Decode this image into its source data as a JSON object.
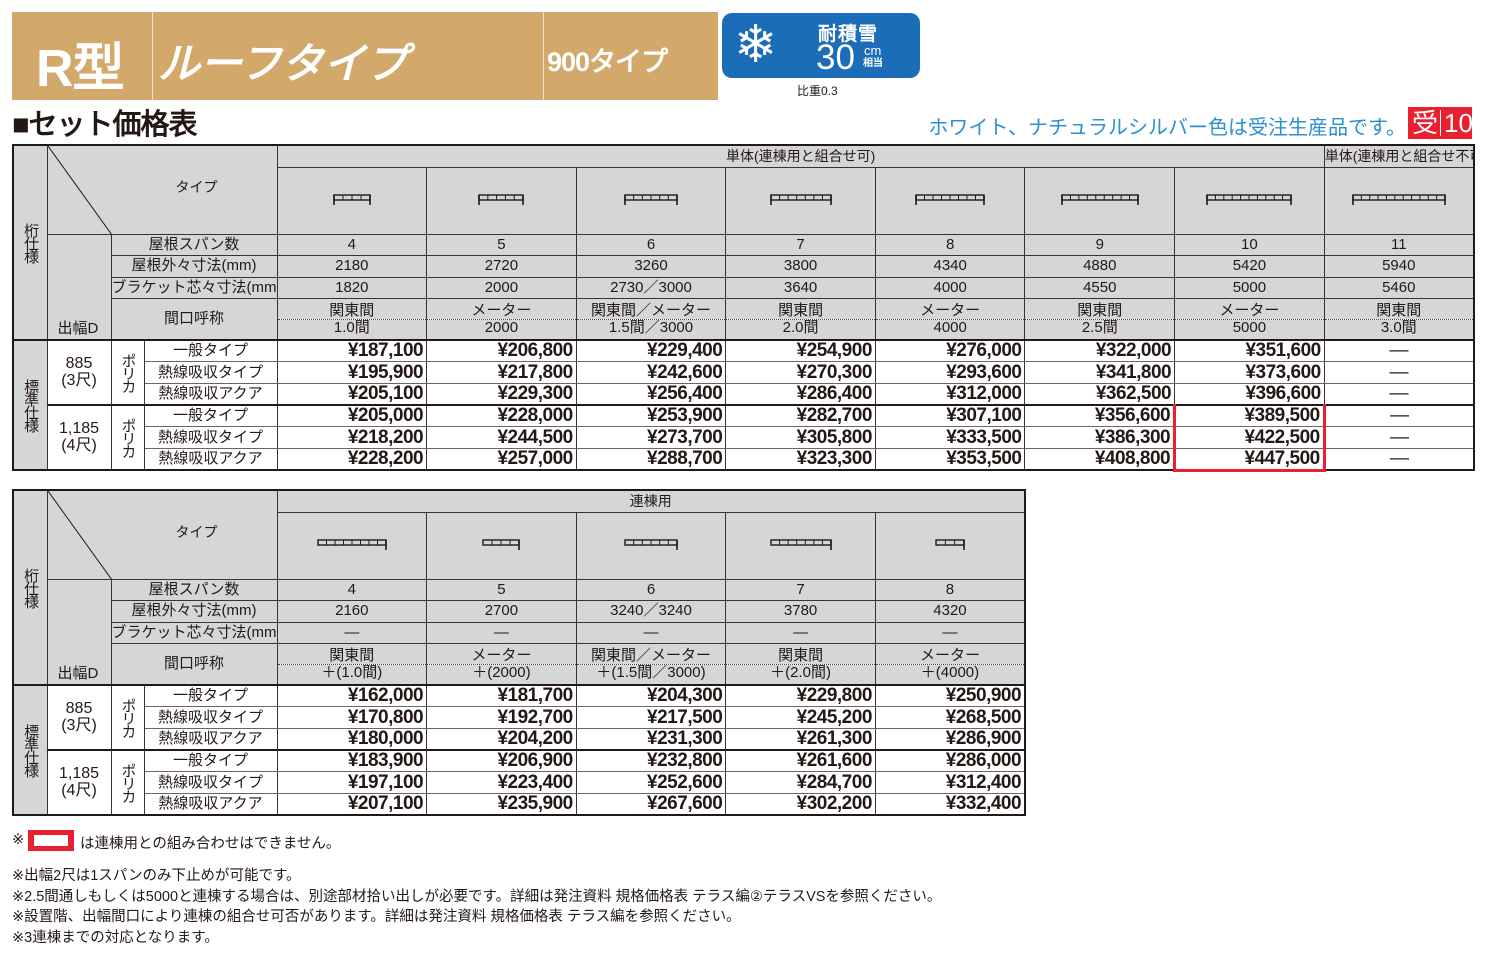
{
  "header": {
    "model": "R型",
    "name": "ルーフタイプ",
    "subtype": "900タイプ",
    "snow": {
      "icon": "snowflake-icon",
      "title": "耐積雪",
      "value": "30",
      "unit_top": "cm",
      "unit_bottom": "相当",
      "note": "比重0.3"
    }
  },
  "section_title": "■セット価格表",
  "notice": {
    "text": "ホワイト、ナチュラルシルバー色は受注生産品です。",
    "badge_a": "受",
    "badge_b": "10"
  },
  "labels": {
    "type": "タイプ",
    "span": "屋根スパン数",
    "outer": "屋根外々寸法(mm)",
    "bracket": "ブラケット芯々寸法(mm)",
    "frontage": "間口呼称",
    "depth": "出幅D",
    "spec": "桁仕様",
    "standard": "標準仕様"
  },
  "colors": {
    "banner": "#d3a96b",
    "snow_badge": "#1c6db7",
    "notice": "#2b8fd0",
    "highlight": "#e8202f"
  },
  "tables": [
    {
      "groups": [
        {
          "label": "単体(連棟用と組合せ可)",
          "span": 7
        },
        {
          "label": "単体(連棟用と組合せ不可)",
          "span": 1
        }
      ],
      "icon": "roof-single-icon",
      "columns": [
        {
          "span": "4",
          "outer": "2180",
          "bracket": "1820",
          "frontage_top": "関東間",
          "frontage_bottom": "1.0間"
        },
        {
          "span": "5",
          "outer": "2720",
          "bracket": "2000",
          "frontage_top": "メーター",
          "frontage_bottom": "2000"
        },
        {
          "span": "6",
          "outer": "3260",
          "bracket": "2730／3000",
          "frontage_top": "関東間／メーター",
          "frontage_bottom": "1.5間／3000"
        },
        {
          "span": "7",
          "outer": "3800",
          "bracket": "3640",
          "frontage_top": "関東間",
          "frontage_bottom": "2.0間"
        },
        {
          "span": "8",
          "outer": "4340",
          "bracket": "4000",
          "frontage_top": "メーター",
          "frontage_bottom": "4000"
        },
        {
          "span": "9",
          "outer": "4880",
          "bracket": "4550",
          "frontage_top": "関東間",
          "frontage_bottom": "2.5間"
        },
        {
          "span": "10",
          "outer": "5420",
          "bracket": "5000",
          "frontage_top": "メーター",
          "frontage_bottom": "5000"
        },
        {
          "span": "11",
          "outer": "5940",
          "bracket": "5460",
          "frontage_top": "関東間",
          "frontage_bottom": "3.0間"
        }
      ],
      "price_groups": [
        {
          "depth": "885",
          "shaku": "(3尺)",
          "material": "ポリカ",
          "rows": [
            {
              "type": "一般タイプ",
              "prices": [
                "¥187,100",
                "¥206,800",
                "¥229,400",
                "¥254,900",
                "¥276,000",
                "¥322,000",
                "¥351,600",
                "—"
              ]
            },
            {
              "type": "熱線吸収タイプ",
              "prices": [
                "¥195,900",
                "¥217,800",
                "¥242,600",
                "¥270,300",
                "¥293,600",
                "¥341,800",
                "¥373,600",
                "—"
              ]
            },
            {
              "type": "熱線吸収アクア",
              "prices": [
                "¥205,100",
                "¥229,300",
                "¥256,400",
                "¥286,400",
                "¥312,000",
                "¥362,500",
                "¥396,600",
                "—"
              ]
            }
          ]
        },
        {
          "depth": "1,185",
          "shaku": "(4尺)",
          "material": "ポリカ",
          "rows": [
            {
              "type": "一般タイプ",
              "prices": [
                "¥205,000",
                "¥228,000",
                "¥253,900",
                "¥282,700",
                "¥307,100",
                "¥356,600",
                "¥389,500",
                "—"
              ]
            },
            {
              "type": "熱線吸収タイプ",
              "prices": [
                "¥218,200",
                "¥244,500",
                "¥273,700",
                "¥305,800",
                "¥333,500",
                "¥386,300",
                "¥422,500",
                "—"
              ]
            },
            {
              "type": "熱線吸収アクア",
              "prices": [
                "¥228,200",
                "¥257,000",
                "¥288,700",
                "¥323,300",
                "¥353,500",
                "¥408,800",
                "¥447,500",
                "—"
              ]
            }
          ]
        }
      ]
    },
    {
      "groups": [
        {
          "label": "連棟用",
          "span": 5
        }
      ],
      "icon": "roof-connected-icon",
      "columns": [
        {
          "span": "4",
          "outer": "2160",
          "bracket": "—",
          "frontage_top": "関東間",
          "frontage_bottom": "＋(1.0間)"
        },
        {
          "span": "5",
          "outer": "2700",
          "bracket": "—",
          "frontage_top": "メーター",
          "frontage_bottom": "＋(2000)"
        },
        {
          "span": "6",
          "outer": "3240／3240",
          "bracket": "—",
          "frontage_top": "関東間／メーター",
          "frontage_bottom": "＋(1.5間／3000)"
        },
        {
          "span": "7",
          "outer": "3780",
          "bracket": "—",
          "frontage_top": "関東間",
          "frontage_bottom": "＋(2.0間)"
        },
        {
          "span": "8",
          "outer": "4320",
          "bracket": "—",
          "frontage_top": "メーター",
          "frontage_bottom": "＋(4000)"
        }
      ],
      "price_groups": [
        {
          "depth": "885",
          "shaku": "(3尺)",
          "material": "ポリカ",
          "rows": [
            {
              "type": "一般タイプ",
              "prices": [
                "¥162,000",
                "¥181,700",
                "¥204,300",
                "¥229,800",
                "¥250,900"
              ]
            },
            {
              "type": "熱線吸収タイプ",
              "prices": [
                "¥170,800",
                "¥192,700",
                "¥217,500",
                "¥245,200",
                "¥268,500"
              ]
            },
            {
              "type": "熱線吸収アクア",
              "prices": [
                "¥180,000",
                "¥204,200",
                "¥231,300",
                "¥261,300",
                "¥286,900"
              ]
            }
          ]
        },
        {
          "depth": "1,185",
          "shaku": "(4尺)",
          "material": "ポリカ",
          "rows": [
            {
              "type": "一般タイプ",
              "prices": [
                "¥183,900",
                "¥206,900",
                "¥232,800",
                "¥261,600",
                "¥286,000"
              ]
            },
            {
              "type": "熱線吸収タイプ",
              "prices": [
                "¥197,100",
                "¥223,400",
                "¥252,600",
                "¥284,700",
                "¥312,400"
              ]
            },
            {
              "type": "熱線吸収アクア",
              "prices": [
                "¥207,100",
                "¥235,900",
                "¥267,600",
                "¥302,200",
                "¥332,400"
              ]
            }
          ]
        }
      ]
    }
  ],
  "footnotes": {
    "legend_prefix": "※",
    "legend_text": "は連棟用との組み合わせはできません。",
    "notes": [
      "※出幅2尺は1スパンのみ下止めが可能です。",
      "※2.5間通しもしくは5000と連棟する場合は、別途部材拾い出しが必要です。詳細は発注資料 規格価格表 テラス編②テラスVSを参照ください。",
      "※設置階、出幅間口により連棟の組合せ可否があります。詳細は発注資料 規格価格表 テラス編を参照ください。",
      "※3連棟までの対応となります。"
    ]
  }
}
